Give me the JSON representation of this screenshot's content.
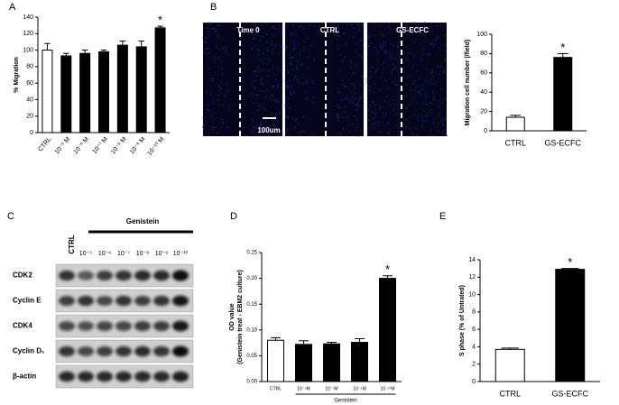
{
  "chart_data": [
    {
      "type": "bar",
      "panel_label": "A",
      "ylabel": "% Migration",
      "categories": [
        "CTRL",
        "10⁻⁵ M",
        "10⁻⁶ M",
        "10⁻⁷ M",
        "10⁻⁸ M",
        "10⁻⁹ M",
        "10⁻¹⁰ M"
      ],
      "values": [
        100,
        93,
        96,
        98,
        106,
        104,
        127
      ],
      "errors": [
        8,
        3,
        4,
        2,
        5,
        7,
        2
      ],
      "colors": [
        "#ffffff",
        "#000000",
        "#000000",
        "#000000",
        "#000000",
        "#000000",
        "#000000"
      ],
      "ylim": [
        0,
        140
      ],
      "yticks": [
        0,
        20,
        40,
        60,
        80,
        100,
        120,
        140
      ],
      "annotations": [
        {
          "text": "*",
          "x": "10⁻¹⁰ M"
        }
      ]
    },
    {
      "type": "bar",
      "ylabel": "Migration cell number (/field)",
      "categories": [
        "CTRL",
        "GS-ECFC"
      ],
      "values": [
        14,
        76
      ],
      "errors": [
        2,
        4
      ],
      "colors": [
        "#ffffff",
        "#000000"
      ],
      "ylim": [
        0,
        100
      ],
      "yticks": [
        0,
        20,
        40,
        60,
        80,
        100
      ],
      "annotations": [
        {
          "text": "*",
          "x": "GS-ECFC"
        }
      ]
    },
    {
      "type": "bar",
      "panel_label": "D",
      "ylabel": "OD value",
      "ylabel2": "(Genistein treat - EBM2 culture)",
      "categories": [
        "CTRL",
        "10⁻⁵M",
        "10⁻⁷M",
        "10⁻⁹M",
        "10⁻¹⁰M"
      ],
      "values": [
        0.08,
        0.072,
        0.073,
        0.076,
        0.2
      ],
      "errors": [
        0.005,
        0.007,
        0.003,
        0.007,
        0.005
      ],
      "colors": [
        "#ffffff",
        "#000000",
        "#000000",
        "#000000",
        "#000000"
      ],
      "ylim": [
        0,
        0.25
      ],
      "yticks": [
        {
          "value": 0,
          "label": "0.00"
        },
        {
          "value": 0.05,
          "label": "0.05"
        },
        {
          "value": 0.1,
          "label": "0.10"
        },
        {
          "value": 0.15,
          "label": "0.15"
        },
        {
          "value": 0.2,
          "label": "0.20"
        },
        {
          "value": 0.25,
          "label": "0.25"
        }
      ],
      "annotations": [
        {
          "text": "*",
          "x": "10⁻¹⁰M"
        }
      ],
      "group_label": {
        "text": "Genistein",
        "from": "10⁻⁵M",
        "to": "10⁻¹⁰M"
      }
    },
    {
      "type": "bar",
      "panel_label": "E",
      "ylabel": "S phase (% of Untrated)",
      "categories": [
        "CTRL",
        "GS-ECFC"
      ],
      "values": [
        3.7,
        12.9
      ],
      "errors": [
        0.15,
        0.1
      ],
      "colors": [
        "#ffffff",
        "#000000"
      ],
      "ylim": [
        0,
        14
      ],
      "yticks": [
        0,
        2,
        4,
        6,
        8,
        10,
        12,
        14
      ],
      "annotations": [
        {
          "text": "*",
          "x": "GS-ECFC"
        }
      ]
    }
  ],
  "migration_images": {
    "panel_label": "B",
    "titles": [
      "Time 0",
      "CTRL",
      "GS-ECFC"
    ],
    "scale_bar": "100um"
  },
  "western_blot": {
    "panel_label": "C",
    "treatment": "Genistein",
    "control": "CTRL",
    "lanes": [
      "10⁻⁵",
      "10⁻⁶",
      "10⁻⁷",
      "10⁻⁸",
      "10⁻⁹",
      "10⁻¹⁰"
    ],
    "rows": [
      "CDK2",
      "Cyclin E",
      "CDK4",
      "Cyclin D₁",
      "β-actin"
    ]
  }
}
